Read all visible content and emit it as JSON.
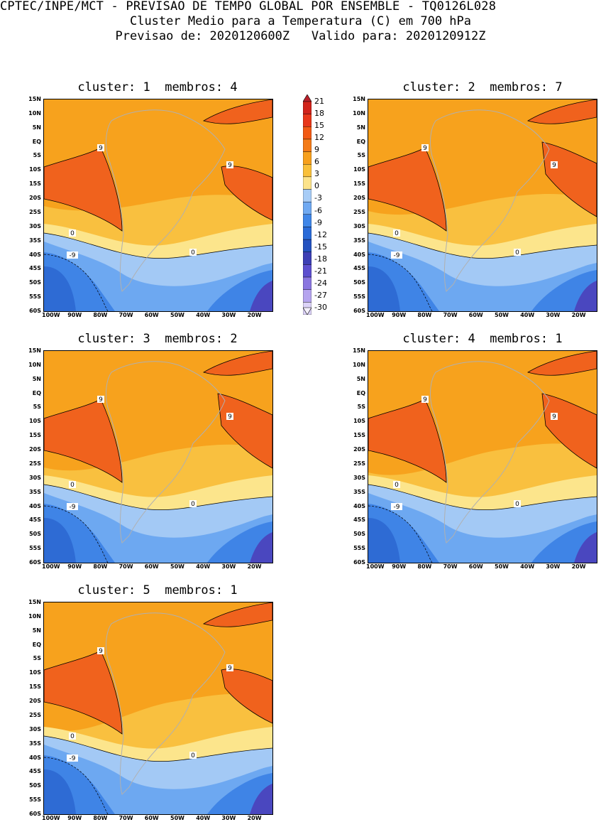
{
  "header": {
    "line1": "CPTEC/INPE/MCT - PREVISAO DE TEMPO GLOBAL POR ENSEMBLE - TQ0126L028",
    "line2": "Cluster Medio para a Temperatura (C) em 700 hPa",
    "line3": "Previsao de: 2020120600Z   Valido para: 2020120912Z"
  },
  "panels": [
    {
      "title": "cluster: 1  membros: 4"
    },
    {
      "title": "cluster: 2  membros: 7"
    },
    {
      "title": "cluster: 3  membros: 2"
    },
    {
      "title": "cluster: 4  membros: 1"
    },
    {
      "title": "cluster: 5  membros: 1"
    }
  ],
  "lat_labels": [
    "15N",
    "10N",
    "5N",
    "EQ",
    "5S",
    "10S",
    "15S",
    "20S",
    "25S",
    "30S",
    "35S",
    "40S",
    "45S",
    "50S",
    "55S",
    "60S"
  ],
  "lon_labels": [
    "100W",
    "90W",
    "80W",
    "70W",
    "60W",
    "50W",
    "40W",
    "30W",
    "20W"
  ],
  "contour_labels": {
    "nine": "9",
    "zero": "0",
    "neg9": "-9"
  },
  "colorbar": {
    "levels": [
      "21",
      "18",
      "15",
      "12",
      "9",
      "6",
      "3",
      "0",
      "-3",
      "-6",
      "-9",
      "-12",
      "-15",
      "-18",
      "-21",
      "-24",
      "-27",
      "-30"
    ],
    "colors": [
      "#b8202a",
      "#d1231b",
      "#e8371a",
      "#f25a14",
      "#f47b18",
      "#f7a01c",
      "#f9c03a",
      "#fce38a",
      "#a7ccf6",
      "#6fa9f2",
      "#3f86e8",
      "#2a6bd8",
      "#2452c0",
      "#3d3fb5",
      "#5d4fcf",
      "#8a76e0",
      "#b5a4ef",
      "#dcd3f8",
      "#f4f0fd"
    ]
  }
}
